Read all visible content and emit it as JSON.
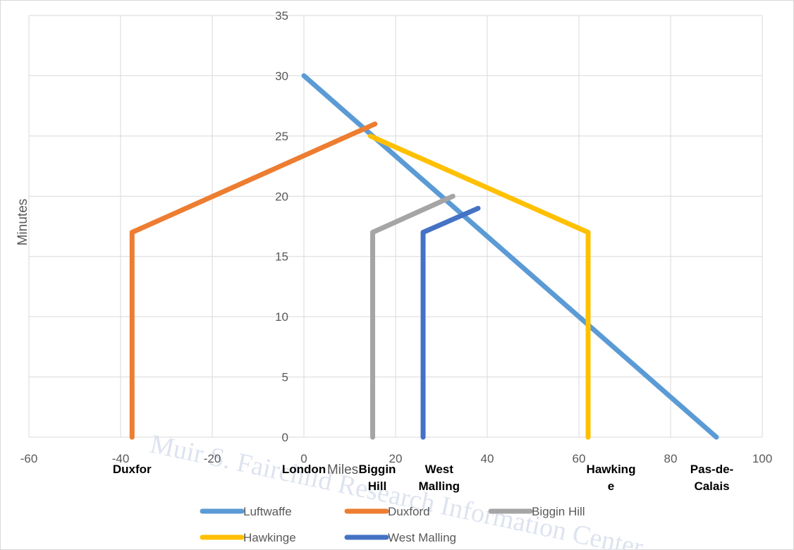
{
  "chart_data": {
    "type": "line",
    "xlabel": "Miles",
    "ylabel": "Minutes",
    "xlim": [
      -60,
      100
    ],
    "ylim": [
      0,
      35
    ],
    "xticks": [
      -60,
      -40,
      -20,
      0,
      20,
      40,
      60,
      80,
      100
    ],
    "yticks": [
      0,
      5,
      10,
      15,
      20,
      25,
      30,
      35
    ],
    "grid": true,
    "legend_position": "bottom",
    "series": [
      {
        "name": "Luftwaffe",
        "color": "#5b9bd5",
        "points": [
          [
            0,
            30
          ],
          [
            90,
            0
          ]
        ]
      },
      {
        "name": "Duxford",
        "color": "#ed7d31",
        "points": [
          [
            -37.5,
            0
          ],
          [
            -37.5,
            17
          ],
          [
            15.5,
            26
          ]
        ]
      },
      {
        "name": "Biggin Hill",
        "color": "#a5a5a5",
        "points": [
          [
            15,
            0
          ],
          [
            15,
            17
          ],
          [
            32.5,
            20
          ]
        ]
      },
      {
        "name": "Hawkinge",
        "color": "#ffc000",
        "points": [
          [
            62,
            0
          ],
          [
            62,
            17
          ],
          [
            14.5,
            25
          ]
        ]
      },
      {
        "name": "West Malling",
        "color": "#4472c4",
        "points": [
          [
            26,
            0
          ],
          [
            26,
            17
          ],
          [
            38,
            19
          ]
        ]
      }
    ],
    "annotations": [
      {
        "lines": [
          "Duxfor"
        ],
        "x": -37.5
      },
      {
        "lines": [
          "London"
        ],
        "x": 0
      },
      {
        "lines": [
          "Biggin",
          "Hill"
        ],
        "x": 16
      },
      {
        "lines": [
          "West",
          "Malling"
        ],
        "x": 29.5
      },
      {
        "lines": [
          "Hawking",
          "e"
        ],
        "x": 67
      },
      {
        "lines": [
          "Pas-de-",
          "Calais"
        ],
        "x": 89
      }
    ]
  },
  "watermark_text": "Muir S. Fairchild Research Information Center"
}
